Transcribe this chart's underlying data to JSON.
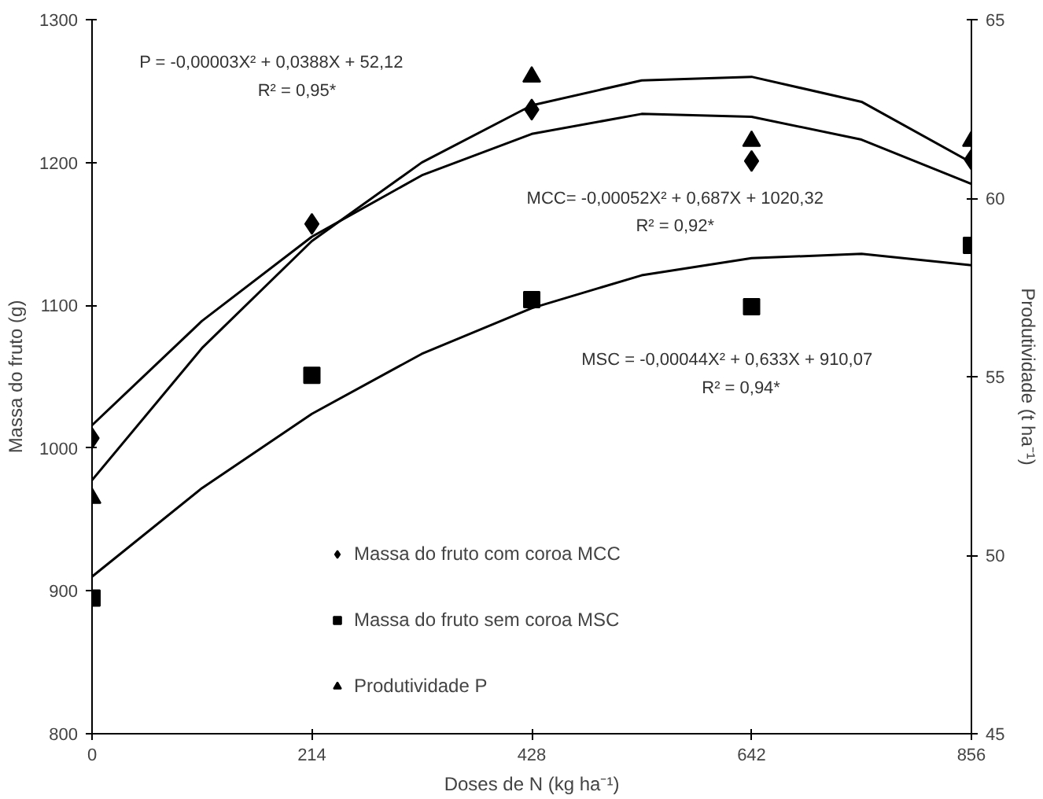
{
  "chart_data": {
    "type": "scatter",
    "xlabel": "Doses de N (kg ha⁻¹)",
    "ylabel": "Massa do fruto (g)",
    "y2label": "Produtividade (t ha⁻¹)",
    "x": [
      0,
      214,
      428,
      642,
      856
    ],
    "xlim": [
      0,
      856
    ],
    "xticks": [
      0,
      214,
      428,
      642,
      856
    ],
    "ylim": [
      800,
      1300
    ],
    "yticks": [
      800,
      900,
      1000,
      1100,
      1200,
      1300
    ],
    "y2lim": [
      45,
      65
    ],
    "y2ticks": [
      45,
      50,
      55,
      60,
      65
    ],
    "grid": false,
    "legend": "bottom",
    "series": [
      {
        "name": "Massa do fruto com coroa MCC",
        "marker": "diamond",
        "color": "#000000",
        "values": [
          1007,
          1157,
          1237,
          1201,
          1202
        ]
      },
      {
        "name": "Massa do fruto sem coroa MSC",
        "marker": "square",
        "color": "#000000",
        "values": [
          895,
          1051,
          1104,
          1099,
          1142
        ]
      },
      {
        "name": "Produtividade P",
        "marker": "triangle",
        "color": "#000000",
        "axis": "y2",
        "values": [
          51.6,
          null,
          63.4,
          61.6,
          61.6
        ]
      },
      {
        "type": "line",
        "color": "#000000",
        "x": [
          0,
          107,
          214,
          321,
          428,
          535,
          642,
          749,
          856
        ],
        "values": [
          1016,
          1089,
          1148,
          1191,
          1220,
          1234,
          1232,
          1216,
          1185
        ]
      },
      {
        "type": "line",
        "color": "#000000",
        "x": [
          0,
          107,
          214,
          321,
          428,
          535,
          642,
          749,
          856
        ],
        "values": [
          910,
          972,
          1024,
          1066,
          1098,
          1121,
          1133,
          1136,
          1128
        ]
      },
      {
        "type": "line",
        "color": "#000000",
        "axis": "y2",
        "x": [
          0,
          107,
          214,
          321,
          428,
          535,
          642,
          749,
          856
        ],
        "values": [
          52.1,
          55.8,
          58.8,
          61.0,
          62.6,
          63.3,
          63.4,
          62.7,
          61.0
        ]
      }
    ],
    "annotations": [
      "P = -0,00003X² + 0,0388X + 52,12",
      "R² = 0,95*",
      "MCC= -0,00052X² + 0,687X + 1020,32",
      "R² = 0,92*",
      "MSC = -0,00044X² + 0,633X + 910,07",
      "R² = 0,94*"
    ]
  }
}
